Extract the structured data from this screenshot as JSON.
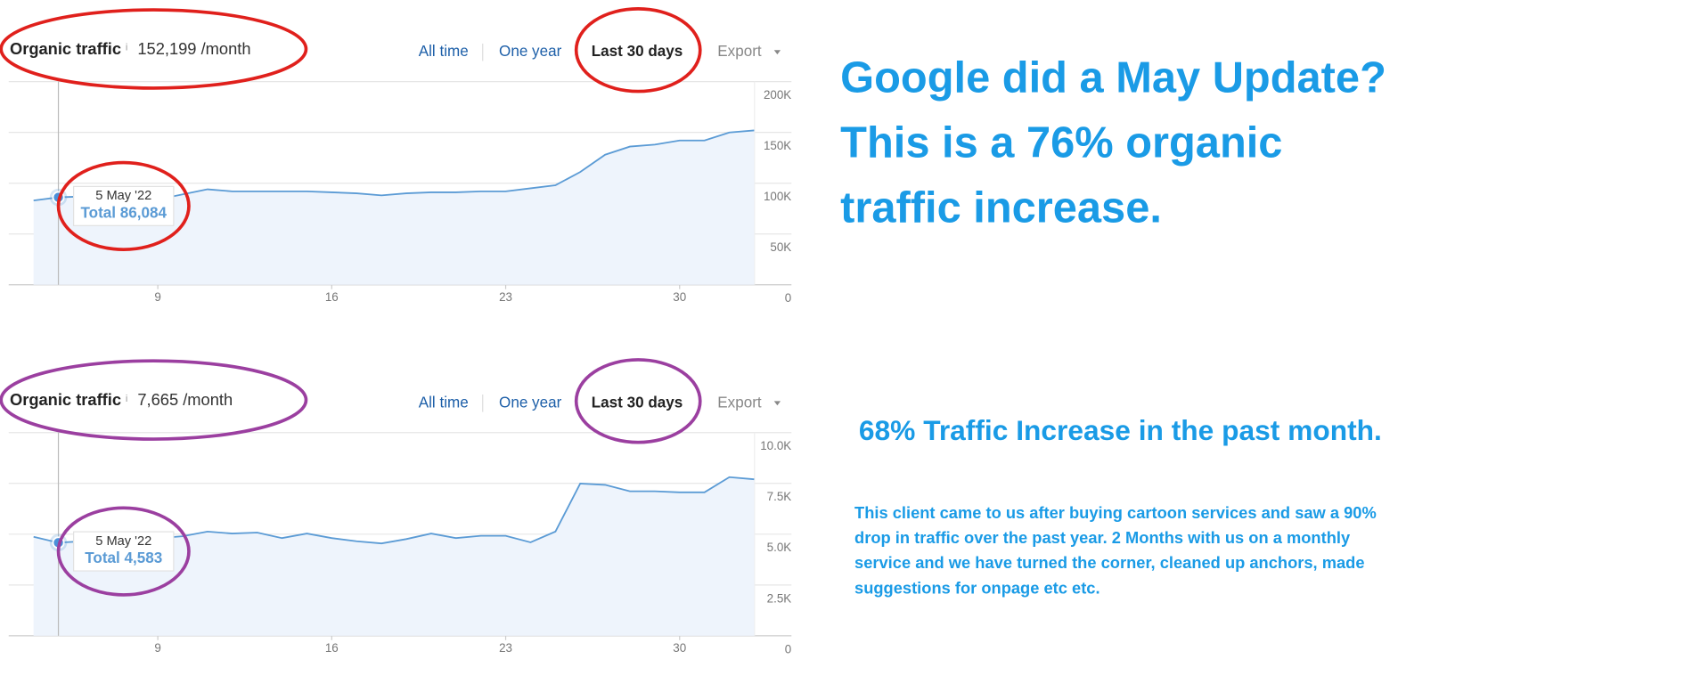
{
  "chart_data": [
    {
      "type": "line",
      "title": "Organic traffic",
      "info_icon": "i",
      "subtitle": "152,199 /month",
      "controls": [
        "All time",
        "One year",
        "Last 30 days",
        "Export"
      ],
      "x": [
        4,
        5,
        6,
        7,
        8,
        9,
        10,
        11,
        12,
        13,
        14,
        15,
        16,
        17,
        18,
        19,
        20,
        21,
        22,
        23,
        24,
        25,
        26,
        27,
        28,
        29,
        30,
        31,
        32,
        33
      ],
      "xlim": [
        3,
        34.5
      ],
      "xticks": [
        9,
        16,
        23,
        30
      ],
      "ylim": [
        0,
        200000
      ],
      "yticks": [
        0,
        {
          "value": 50000,
          "label": "50K"
        },
        {
          "value": 100000,
          "label": "100K"
        },
        {
          "value": 150000,
          "label": "150K"
        },
        {
          "value": 200000,
          "label": "200K"
        }
      ],
      "grid": true,
      "series": [
        {
          "color": "#5b9bd5",
          "values": [
            83000,
            86084,
            87000,
            86000,
            85000,
            84000,
            89000,
            94000,
            92000,
            92000,
            92000,
            92000,
            91000,
            90000,
            88000,
            90000,
            91000,
            91000,
            92000,
            92000,
            95000,
            98000,
            111000,
            128000,
            136000,
            138000,
            142000,
            142000,
            150000,
            152000
          ]
        }
      ],
      "tooltip": {
        "x": 5,
        "date": "5 May '22",
        "label": "Total 86,084",
        "value": 86084
      }
    },
    {
      "type": "line",
      "title": "Organic traffic",
      "info_icon": "i",
      "subtitle": "7,665 /month",
      "controls": [
        "All time",
        "One year",
        "Last 30 days",
        "Export"
      ],
      "x": [
        4,
        5,
        6,
        7,
        8,
        9,
        10,
        11,
        12,
        13,
        14,
        15,
        16,
        17,
        18,
        19,
        20,
        21,
        22,
        23,
        24,
        25,
        26,
        27,
        28,
        29,
        30,
        31,
        32,
        33
      ],
      "xlim": [
        3,
        34.5
      ],
      "xticks": [
        9,
        16,
        23,
        30
      ],
      "ylim": [
        0,
        10000
      ],
      "yticks": [
        0,
        {
          "value": 2500,
          "label": "2.5K"
        },
        {
          "value": 5000,
          "label": "5.0K"
        },
        {
          "value": 7500,
          "label": "7.5K"
        },
        {
          "value": 10000,
          "label": "10.0K"
        }
      ],
      "grid": true,
      "series": [
        {
          "color": "#5b9bd5",
          "values": [
            4870,
            4583,
            4650,
            4700,
            4750,
            4800,
            4900,
            5130,
            5030,
            5080,
            4810,
            5030,
            4810,
            4650,
            4545,
            4760,
            5030,
            4810,
            4920,
            4920,
            4600,
            5130,
            7490,
            7430,
            7110,
            7110,
            7060,
            7060,
            7810,
            7700
          ]
        }
      ],
      "tooltip": {
        "x": 5,
        "date": "5 May '22",
        "label": "Total 4,583",
        "value": 4583
      }
    }
  ],
  "headline": [
    "Google did a May Update?",
    "This is a 76% organic",
    "traffic increase."
  ],
  "subheading": "68% Traffic Increase in the past month.",
  "body": [
    "This client came to us after buying cartoon services and saw a 90%",
    "drop in traffic over the past year. 2 Months with us on a monthly",
    "service and we have turned the corner, cleaned up anchors, made",
    "suggestions for onpage etc etc."
  ]
}
